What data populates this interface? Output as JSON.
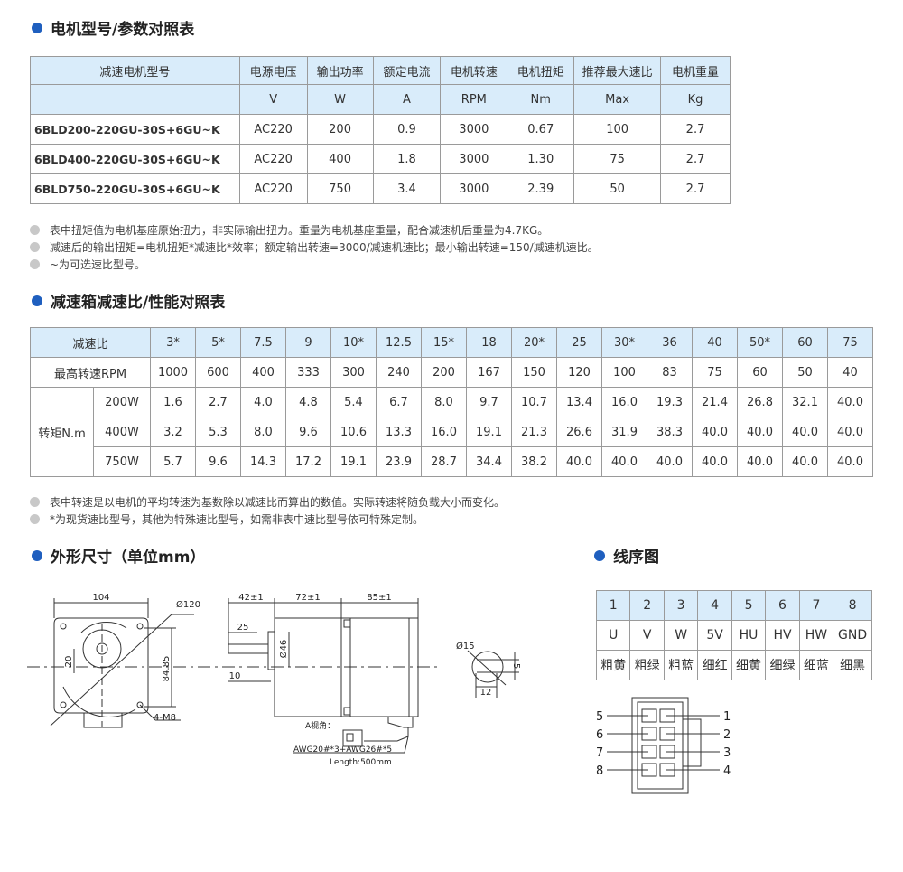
{
  "colors": {
    "accent": "#1f5fbf",
    "header_bg": "#d9ecfa",
    "bullet": "#c8c8c8"
  },
  "section1": {
    "title": "电机型号/参数对照表",
    "headers": [
      "减速电机型号",
      "电源电压",
      "输出功率",
      "额定电流",
      "电机转速",
      "电机扭矩",
      "推荐最大速比",
      "电机重量"
    ],
    "units": [
      "",
      "V",
      "W",
      "A",
      "RPM",
      "Nm",
      "Max",
      "Kg"
    ],
    "rows": [
      [
        "6BLD200-220GU-30S+6GU~K",
        "AC220",
        "200",
        "0.9",
        "3000",
        "0.67",
        "100",
        "2.7"
      ],
      [
        "6BLD400-220GU-30S+6GU~K",
        "AC220",
        "400",
        "1.8",
        "3000",
        "1.30",
        "75",
        "2.7"
      ],
      [
        "6BLD750-220GU-30S+6GU~K",
        "AC220",
        "750",
        "3.4",
        "3000",
        "2.39",
        "50",
        "2.7"
      ]
    ],
    "notes": [
      "表中扭矩值为电机基座原始扭力，非实际输出扭力。重量为电机基座重量，配合减速机后重量为4.7KG。",
      "减速后的输出扭矩=电机扭矩*减速比*效率；额定输出转速=3000/减速机速比；最小输出转速=150/减速机速比。",
      "~为可选速比型号。"
    ]
  },
  "section2": {
    "title": "减速箱减速比/性能对照表",
    "ratio_label": "减速比",
    "ratios": [
      "3*",
      "5*",
      "7.5",
      "9",
      "10*",
      "12.5",
      "15*",
      "18",
      "20*",
      "25",
      "30*",
      "36",
      "40",
      "50*",
      "60",
      "75"
    ],
    "rpm_label": "最高转速RPM",
    "rpm": [
      "1000",
      "600",
      "400",
      "333",
      "300",
      "240",
      "200",
      "167",
      "150",
      "120",
      "100",
      "83",
      "75",
      "60",
      "50",
      "40"
    ],
    "torque_label": "转矩N.m",
    "torque": [
      {
        "power": "200W",
        "values": [
          "1.6",
          "2.7",
          "4.0",
          "4.8",
          "5.4",
          "6.7",
          "8.0",
          "9.7",
          "10.7",
          "13.4",
          "16.0",
          "19.3",
          "21.4",
          "26.8",
          "32.1",
          "40.0"
        ]
      },
      {
        "power": "400W",
        "values": [
          "3.2",
          "5.3",
          "8.0",
          "9.6",
          "10.6",
          "13.3",
          "16.0",
          "19.1",
          "21.3",
          "26.6",
          "31.9",
          "38.3",
          "40.0",
          "40.0",
          "40.0",
          "40.0"
        ]
      },
      {
        "power": "750W",
        "values": [
          "5.7",
          "9.6",
          "14.3",
          "17.2",
          "19.1",
          "23.9",
          "28.7",
          "34.4",
          "38.2",
          "40.0",
          "40.0",
          "40.0",
          "40.0",
          "40.0",
          "40.0",
          "40.0"
        ]
      }
    ],
    "notes": [
      "表中转速是以电机的平均转速为基数除以减速比而算出的数值。实际转速将随负载大小而变化。",
      "*为现货速比型号，其他为特殊速比型号，如需非表中速比型号依可特殊定制。"
    ]
  },
  "section3": {
    "title": "外形尺寸（单位mm）",
    "dims": {
      "width": "104",
      "circle": "Ø120",
      "height": "84.85",
      "offset": "20",
      "holes": "4-M8",
      "shaft_len": "42±1",
      "gear_len": "72±1",
      "motor_len": "85±1",
      "key_len": "25",
      "pilot": "Ø46",
      "key_offset": "10",
      "view_a": "A视角：",
      "cable": "AWG20#*3+AWG26#*5",
      "length": "Length:500mm",
      "shaft_dia": "Ø15",
      "key_w": "5",
      "shaft_flat": "12"
    }
  },
  "section4": {
    "title": "线序图",
    "pins": [
      "1",
      "2",
      "3",
      "4",
      "5",
      "6",
      "7",
      "8"
    ],
    "signals": [
      "U",
      "V",
      "W",
      "5V",
      "HU",
      "HV",
      "HW",
      "GND"
    ],
    "wires": [
      "粗黄",
      "粗绿",
      "粗蓝",
      "细红",
      "细黄",
      "细绿",
      "细蓝",
      "细黑"
    ],
    "left_labels": [
      "5",
      "6",
      "7",
      "8"
    ],
    "right_labels": [
      "1",
      "2",
      "3",
      "4"
    ]
  }
}
